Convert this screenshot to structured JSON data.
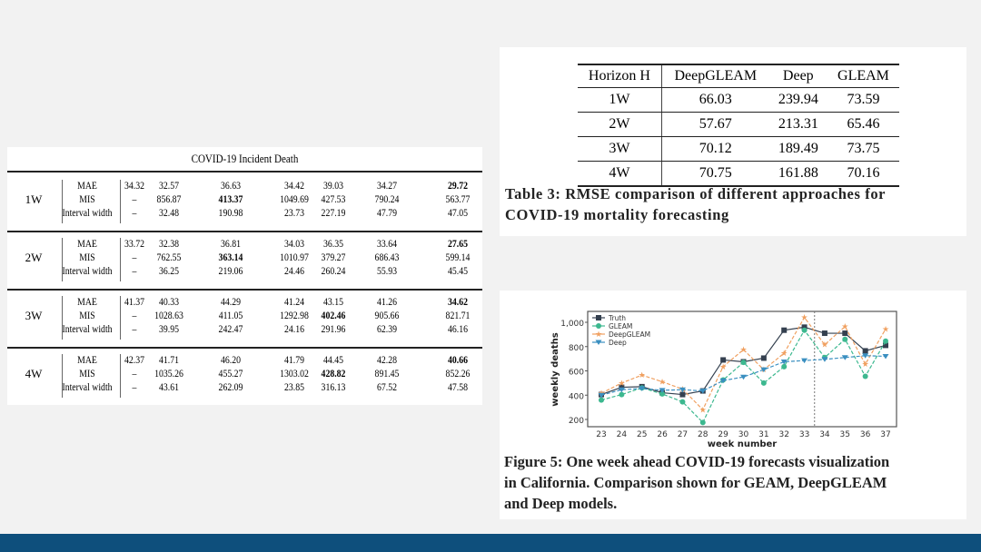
{
  "left_table": {
    "title": "COVID-19 Incident Death",
    "groups": [
      {
        "horizon": "1W",
        "rows": [
          {
            "metric": "MAE",
            "values": [
              "34.32",
              "32.57",
              "36.63",
              "34.42",
              "39.03",
              "34.27",
              "29.72"
            ],
            "bold": [
              6
            ]
          },
          {
            "metric": "MIS",
            "values": [
              "–",
              "856.87",
              "413.37",
              "1049.69",
              "427.53",
              "790.24",
              "563.77"
            ],
            "bold": [
              2
            ]
          },
          {
            "metric": "Interval width",
            "values": [
              "–",
              "32.48",
              "190.98",
              "23.73",
              "227.19",
              "47.79",
              "47.05"
            ],
            "bold": []
          }
        ]
      },
      {
        "horizon": "2W",
        "rows": [
          {
            "metric": "MAE",
            "values": [
              "33.72",
              "32.38",
              "36.81",
              "34.03",
              "36.35",
              "33.64",
              "27.65"
            ],
            "bold": [
              6
            ]
          },
          {
            "metric": "MIS",
            "values": [
              "–",
              "762.55",
              "363.14",
              "1010.97",
              "379.27",
              "686.43",
              "599.14"
            ],
            "bold": [
              2
            ]
          },
          {
            "metric": "Interval width",
            "values": [
              "–",
              "36.25",
              "219.06",
              "24.46",
              "260.24",
              "55.93",
              "45.45"
            ],
            "bold": []
          }
        ]
      },
      {
        "horizon": "3W",
        "rows": [
          {
            "metric": "MAE",
            "values": [
              "41.37",
              "40.33",
              "44.29",
              "41.24",
              "43.15",
              "41.26",
              "34.62"
            ],
            "bold": [
              6
            ]
          },
          {
            "metric": "MIS",
            "values": [
              "–",
              "1028.63",
              "411.05",
              "1292.98",
              "402.46",
              "905.66",
              "821.71"
            ],
            "bold": [
              4
            ]
          },
          {
            "metric": "Interval width",
            "values": [
              "–",
              "39.95",
              "242.47",
              "24.16",
              "291.96",
              "62.39",
              "46.16"
            ],
            "bold": []
          }
        ]
      },
      {
        "horizon": "4W",
        "rows": [
          {
            "metric": "MAE",
            "values": [
              "42.37",
              "41.71",
              "46.20",
              "41.79",
              "44.45",
              "42.28",
              "40.66"
            ],
            "bold": [
              6
            ]
          },
          {
            "metric": "MIS",
            "values": [
              "–",
              "1035.26",
              "455.27",
              "1303.02",
              "428.82",
              "891.45",
              "852.26"
            ],
            "bold": [
              4
            ]
          },
          {
            "metric": "Interval width",
            "values": [
              "–",
              "43.61",
              "262.09",
              "23.85",
              "316.13",
              "67.52",
              "47.58"
            ],
            "bold": []
          }
        ]
      }
    ]
  },
  "rmse_table": {
    "headers": [
      "Horizon H",
      "DeepGLEAM",
      "Deep",
      "GLEAM"
    ],
    "rows": [
      [
        "1W",
        "66.03",
        "239.94",
        "73.59"
      ],
      [
        "2W",
        "57.67",
        "213.31",
        "65.46"
      ],
      [
        "3W",
        "70.12",
        "189.49",
        "73.75"
      ],
      [
        "4W",
        "70.75",
        "161.88",
        "70.16"
      ]
    ],
    "caption_line1": "Table 3: RMSE comparison of different approaches for",
    "caption_line2": "COVID-19 mortality forecasting"
  },
  "figure": {
    "caption_line1": "Figure 5: One week ahead COVID-19 forecasts visualization",
    "caption_line2": "in California. Comparison shown for GEAM, DeepGLEAM",
    "caption_line3": "and Deep models."
  },
  "chart_data": {
    "type": "line",
    "xlabel": "week number",
    "ylabel": "weekly deaths",
    "x": [
      23,
      24,
      25,
      26,
      27,
      28,
      29,
      30,
      31,
      32,
      33,
      34,
      35,
      36,
      37
    ],
    "yticks": [
      "200",
      "400",
      "600",
      "800",
      "1,000"
    ],
    "ylim": [
      150,
      1080
    ],
    "legend_position": "top-left",
    "forecast_start_marker": 33.5,
    "series": [
      {
        "name": "Truth",
        "color": "#34404f",
        "marker": "square",
        "dashed": false,
        "values": [
          405,
          465,
          470,
          420,
          405,
          435,
          690,
          675,
          705,
          935,
          960,
          910,
          910,
          765,
          810
        ]
      },
      {
        "name": "GLEAM",
        "color": "#3cb88f",
        "marker": "circle",
        "dashed": true,
        "values": [
          360,
          405,
          460,
          410,
          345,
          175,
          525,
          670,
          500,
          635,
          935,
          710,
          860,
          555,
          845
        ]
      },
      {
        "name": "DeepGLEAM",
        "color": "#f0a060",
        "marker": "star",
        "dashed": true,
        "values": [
          415,
          500,
          565,
          510,
          450,
          280,
          635,
          775,
          610,
          745,
          1040,
          815,
          965,
          655,
          945
        ]
      },
      {
        "name": "Deep",
        "color": "#3a8fc0",
        "marker": "triangle-down",
        "dashed": true,
        "values": [
          400,
          445,
          455,
          440,
          445,
          435,
          520,
          550,
          610,
          675,
          685,
          695,
          710,
          725,
          720
        ]
      }
    ]
  }
}
